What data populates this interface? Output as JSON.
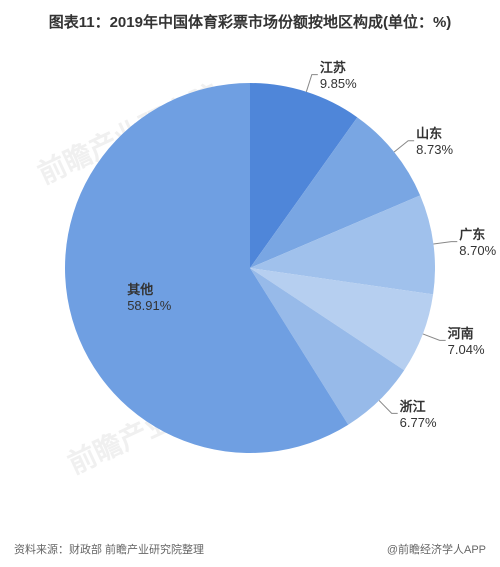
{
  "title": "图表11：2019年中国体育彩票市场份额按地区构成(单位：%)",
  "chart": {
    "type": "pie",
    "radius": 185,
    "start_angle": -90,
    "background_color": "#ffffff",
    "title_fontsize": 15,
    "title_color": "#333333",
    "label_fontsize": 13,
    "label_color": "#333333",
    "slices": [
      {
        "name": "江苏",
        "value": 9.85,
        "color": "#4f86d9"
      },
      {
        "name": "山东",
        "value": 8.73,
        "color": "#79a6e3"
      },
      {
        "name": "广东",
        "value": 8.7,
        "color": "#a0c1ec"
      },
      {
        "name": "河南",
        "value": 7.04,
        "color": "#b6cff0"
      },
      {
        "name": "浙江",
        "value": 6.77,
        "color": "#97bae9"
      },
      {
        "name": "其他",
        "value": 58.91,
        "color": "#6f9fe2"
      }
    ],
    "watermarks": [
      "前瞻产业研究院",
      "前瞻产业研究院",
      "前瞻产业研究院"
    ]
  },
  "footer": {
    "source": "资料来源：财政部 前瞻产业研究院整理",
    "credit": "@前瞻经济学人APP"
  }
}
